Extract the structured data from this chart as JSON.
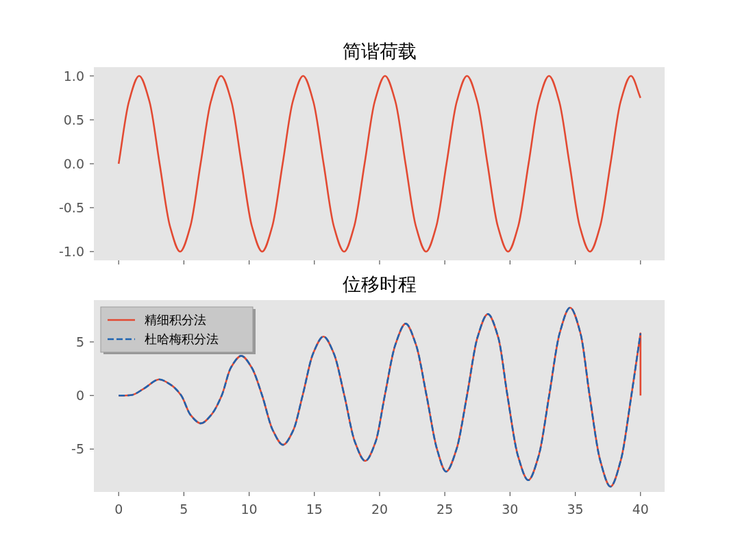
{
  "chart_data": [
    {
      "type": "line",
      "title": "简谐荷载",
      "xlim": [
        -1.9,
        41.85
      ],
      "ylim": [
        -1.1,
        1.1
      ],
      "xticks": [
        0,
        5,
        10,
        15,
        20,
        25,
        30,
        35,
        40
      ],
      "yticks": [
        {
          "value": -1,
          "label": "-1.0"
        },
        {
          "value": -0.5,
          "label": "-0.5"
        },
        {
          "value": 0,
          "label": "0.0"
        },
        {
          "value": 0.5,
          "label": "0.5"
        },
        {
          "value": 1,
          "label": "1.0"
        }
      ],
      "tick_labels": "y",
      "grid": false,
      "legend": false,
      "series": [
        {
          "color": "#e24a33",
          "line_style": "solid",
          "x": [
            0,
            0.79,
            1.57,
            2.36,
            3.14,
            3.93,
            4.71,
            5.5,
            6.28,
            7.07,
            7.85,
            8.64,
            9.42,
            10.21,
            11.0,
            11.78,
            12.57,
            13.35,
            14.14,
            14.92,
            15.71,
            16.49,
            17.28,
            18.06,
            18.85,
            19.63,
            20.42,
            21.21,
            21.99,
            22.78,
            23.56,
            24.35,
            25.13,
            25.92,
            26.7,
            27.49,
            28.27,
            29.06,
            29.85,
            30.63,
            31.42,
            32.2,
            32.99,
            33.77,
            34.56,
            35.34,
            36.13,
            36.91,
            37.7,
            38.48,
            39.27,
            40
          ],
          "values": [
            0,
            0.71,
            1,
            0.71,
            0,
            -0.71,
            -1,
            -0.71,
            0,
            0.71,
            1,
            0.71,
            0,
            -0.71,
            -1,
            -0.71,
            0,
            0.71,
            1,
            0.71,
            0,
            -0.71,
            -1,
            -0.71,
            0,
            0.71,
            1,
            0.71,
            0,
            -0.71,
            -1,
            -0.71,
            0,
            0.71,
            1,
            0.71,
            0,
            -0.71,
            -1,
            -0.71,
            0,
            0.71,
            1,
            0.71,
            0,
            -0.71,
            -1,
            -0.71,
            0,
            0.71,
            1,
            0.75
          ]
        }
      ]
    },
    {
      "type": "line",
      "title": "位移时程",
      "xlim": [
        -1.9,
        41.85
      ],
      "ylim": [
        -9,
        8.9
      ],
      "xticks": [
        0,
        5,
        10,
        15,
        20,
        25,
        30,
        35,
        40
      ],
      "yticks": [
        -5,
        0,
        5
      ],
      "grid": false,
      "legend": "top left",
      "series": [
        {
          "name": "精细积分法",
          "color": "#e24a33",
          "line_style": "solid",
          "x": [
            0,
            0.5,
            1,
            2,
            3.1,
            4,
            4.8,
            5.5,
            6.3,
            7.1,
            7.9,
            8.6,
            9.4,
            10.2,
            11,
            11.8,
            12.6,
            13.4,
            14.1,
            14.9,
            15.7,
            16.5,
            17.3,
            18.1,
            18.9,
            19.7,
            20.4,
            21.2,
            22,
            22.8,
            23.6,
            24.4,
            25.1,
            25.9,
            26.7,
            27.5,
            28.3,
            29.1,
            29.8,
            30.6,
            31.4,
            32.2,
            33,
            33.8,
            34.6,
            35.4,
            36.1,
            36.9,
            37.7,
            38.5,
            39.3,
            40,
            40
          ],
          "values": [
            0,
            0,
            0.05,
            0.7,
            1.5,
            1,
            0,
            -1.8,
            -2.6,
            -1.8,
            0,
            2.6,
            3.7,
            2.6,
            0,
            -3.2,
            -4.6,
            -3.2,
            0,
            3.9,
            5.5,
            3.9,
            0,
            -4.3,
            -6.1,
            -4.3,
            0,
            4.7,
            6.7,
            4.7,
            0,
            -5,
            -7.1,
            -5,
            0,
            5.4,
            7.6,
            5.4,
            0,
            -5.6,
            -7.9,
            -5.6,
            0,
            5.8,
            8.2,
            5.8,
            0,
            -6,
            -8.5,
            -6,
            0,
            5.8,
            0
          ]
        },
        {
          "name": "杜哈梅积分法",
          "color": "#1f63b0",
          "line_style": "dashed",
          "x": [
            0,
            0.5,
            1,
            2,
            3.1,
            4,
            4.8,
            5.5,
            6.3,
            7.1,
            7.9,
            8.6,
            9.4,
            10.2,
            11,
            11.8,
            12.6,
            13.4,
            14.1,
            14.9,
            15.7,
            16.5,
            17.3,
            18.1,
            18.9,
            19.7,
            20.4,
            21.2,
            22,
            22.8,
            23.6,
            24.4,
            25.1,
            25.9,
            26.7,
            27.5,
            28.3,
            29.1,
            29.8,
            30.6,
            31.4,
            32.2,
            33,
            33.8,
            34.6,
            35.4,
            36.1,
            36.9,
            37.7,
            38.5,
            39.3,
            40
          ],
          "values": [
            0,
            0,
            0.05,
            0.7,
            1.5,
            1,
            0,
            -1.8,
            -2.6,
            -1.8,
            0,
            2.6,
            3.7,
            2.6,
            0,
            -3.2,
            -4.6,
            -3.2,
            0,
            3.9,
            5.5,
            3.9,
            0,
            -4.3,
            -6.1,
            -4.3,
            0,
            4.7,
            6.7,
            4.7,
            0,
            -5,
            -7.1,
            -5,
            0,
            5.4,
            7.6,
            5.4,
            0,
            -5.6,
            -7.9,
            -5.6,
            0,
            5.8,
            8.2,
            5.8,
            0,
            -6,
            -8.5,
            -6,
            0,
            5.8
          ]
        }
      ]
    }
  ]
}
